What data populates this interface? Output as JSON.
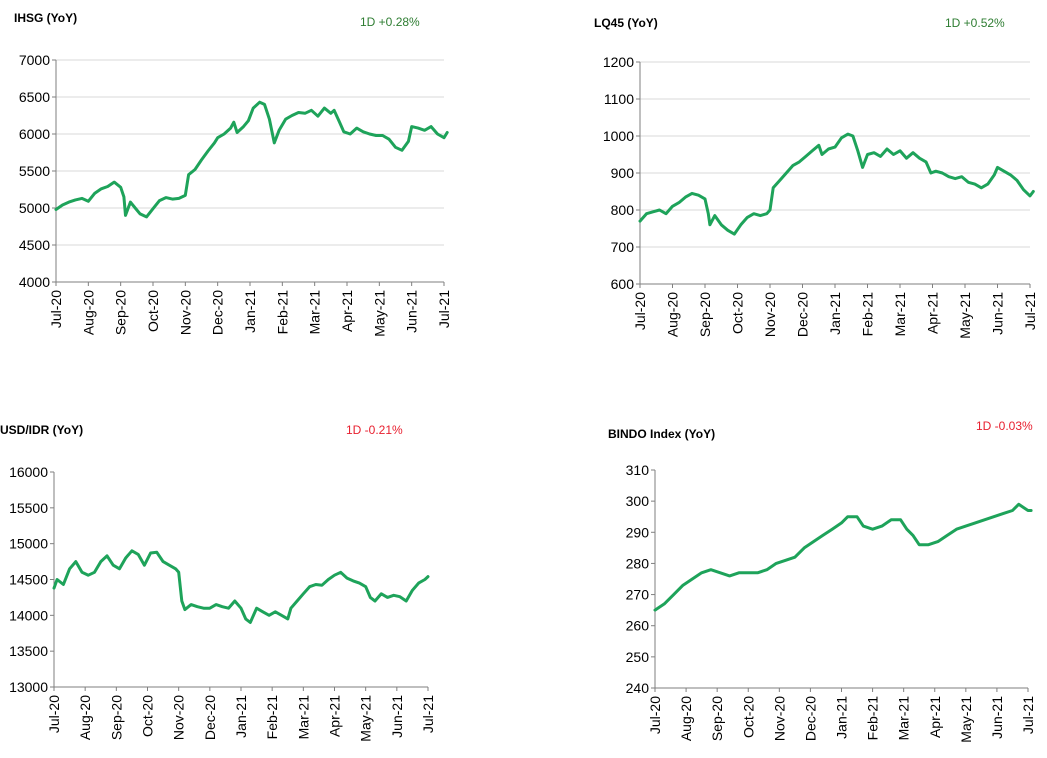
{
  "colors": {
    "line": "#1ea35a",
    "grid": "#d9d9d9",
    "axis": "#7f7f7f",
    "text": "#000000",
    "up": "#2e7d32",
    "down": "#e8202f"
  },
  "chart_data": [
    {
      "type": "line",
      "title": "IHSG (YoY)",
      "change": "1D +0.28%",
      "change_dir": "up",
      "xlabel": "",
      "ylabel": "",
      "categories": [
        "Jul-20",
        "Aug-20",
        "Sep-20",
        "Oct-20",
        "Nov-20",
        "Dec-20",
        "Jan-21",
        "Feb-21",
        "Mar-21",
        "Apr-21",
        "May-21",
        "Jun-21",
        "Jul-21"
      ],
      "yticks": [
        4000,
        4500,
        5000,
        5500,
        6000,
        6500,
        7000
      ],
      "ylim": [
        4000,
        7000
      ],
      "grid": true,
      "legend": "none",
      "series": [
        {
          "values": [
            [
              0,
              4980
            ],
            [
              0.2,
              5040
            ],
            [
              0.4,
              5080
            ],
            [
              0.6,
              5110
            ],
            [
              0.8,
              5130
            ],
            [
              1.0,
              5090
            ],
            [
              1.2,
              5200
            ],
            [
              1.4,
              5260
            ],
            [
              1.6,
              5290
            ],
            [
              1.8,
              5350
            ],
            [
              2.0,
              5280
            ],
            [
              2.1,
              5150
            ],
            [
              2.15,
              4900
            ],
            [
              2.3,
              5080
            ],
            [
              2.45,
              5000
            ],
            [
              2.6,
              4920
            ],
            [
              2.8,
              4880
            ],
            [
              3.0,
              4990
            ],
            [
              3.2,
              5100
            ],
            [
              3.4,
              5140
            ],
            [
              3.6,
              5120
            ],
            [
              3.8,
              5130
            ],
            [
              4.0,
              5170
            ],
            [
              4.1,
              5450
            ],
            [
              4.3,
              5520
            ],
            [
              4.5,
              5650
            ],
            [
              4.7,
              5770
            ],
            [
              4.9,
              5880
            ],
            [
              5.0,
              5950
            ],
            [
              5.2,
              6000
            ],
            [
              5.4,
              6080
            ],
            [
              5.5,
              6160
            ],
            [
              5.6,
              6020
            ],
            [
              5.8,
              6100
            ],
            [
              5.95,
              6180
            ],
            [
              6.1,
              6350
            ],
            [
              6.3,
              6430
            ],
            [
              6.45,
              6400
            ],
            [
              6.6,
              6200
            ],
            [
              6.75,
              5880
            ],
            [
              6.9,
              6050
            ],
            [
              7.1,
              6200
            ],
            [
              7.3,
              6250
            ],
            [
              7.5,
              6290
            ],
            [
              7.7,
              6280
            ],
            [
              7.9,
              6320
            ],
            [
              8.1,
              6240
            ],
            [
              8.3,
              6350
            ],
            [
              8.5,
              6280
            ],
            [
              8.6,
              6320
            ],
            [
              8.75,
              6180
            ],
            [
              8.9,
              6030
            ],
            [
              9.1,
              6000
            ],
            [
              9.3,
              6080
            ],
            [
              9.5,
              6030
            ],
            [
              9.7,
              6000
            ],
            [
              9.9,
              5980
            ],
            [
              10.1,
              5980
            ],
            [
              10.3,
              5930
            ],
            [
              10.5,
              5820
            ],
            [
              10.7,
              5780
            ],
            [
              10.9,
              5900
            ],
            [
              11.0,
              6100
            ],
            [
              11.2,
              6080
            ],
            [
              11.4,
              6050
            ],
            [
              11.6,
              6100
            ],
            [
              11.8,
              6000
            ],
            [
              12.0,
              5950
            ],
            [
              12.1,
              6020
            ]
          ]
        }
      ]
    },
    {
      "type": "line",
      "title": "LQ45 (YoY)",
      "change": "1D +0.52%",
      "change_dir": "up",
      "xlabel": "",
      "ylabel": "",
      "categories": [
        "Jul-20",
        "Aug-20",
        "Sep-20",
        "Oct-20",
        "Nov-20",
        "Dec-20",
        "Jan-21",
        "Feb-21",
        "Mar-21",
        "Apr-21",
        "May-21",
        "Jun-21",
        "Jul-21"
      ],
      "yticks": [
        600,
        700,
        800,
        900,
        1000,
        1100,
        1200
      ],
      "ylim": [
        600,
        1200
      ],
      "grid": true,
      "legend": "none",
      "series": [
        {
          "values": [
            [
              0,
              770
            ],
            [
              0.2,
              790
            ],
            [
              0.4,
              795
            ],
            [
              0.6,
              800
            ],
            [
              0.8,
              790
            ],
            [
              1.0,
              810
            ],
            [
              1.2,
              820
            ],
            [
              1.4,
              835
            ],
            [
              1.6,
              845
            ],
            [
              1.8,
              840
            ],
            [
              2.0,
              830
            ],
            [
              2.1,
              790
            ],
            [
              2.15,
              760
            ],
            [
              2.3,
              785
            ],
            [
              2.5,
              760
            ],
            [
              2.7,
              745
            ],
            [
              2.9,
              735
            ],
            [
              3.1,
              760
            ],
            [
              3.3,
              780
            ],
            [
              3.5,
              790
            ],
            [
              3.7,
              785
            ],
            [
              3.9,
              790
            ],
            [
              4.0,
              800
            ],
            [
              4.1,
              860
            ],
            [
              4.3,
              880
            ],
            [
              4.5,
              900
            ],
            [
              4.7,
              920
            ],
            [
              4.9,
              930
            ],
            [
              5.1,
              945
            ],
            [
              5.3,
              960
            ],
            [
              5.5,
              975
            ],
            [
              5.6,
              950
            ],
            [
              5.8,
              965
            ],
            [
              6.0,
              970
            ],
            [
              6.2,
              995
            ],
            [
              6.4,
              1005
            ],
            [
              6.55,
              1000
            ],
            [
              6.7,
              960
            ],
            [
              6.85,
              915
            ],
            [
              7.0,
              950
            ],
            [
              7.2,
              955
            ],
            [
              7.4,
              945
            ],
            [
              7.6,
              965
            ],
            [
              7.8,
              950
            ],
            [
              8.0,
              960
            ],
            [
              8.2,
              940
            ],
            [
              8.4,
              955
            ],
            [
              8.6,
              940
            ],
            [
              8.8,
              930
            ],
            [
              8.95,
              900
            ],
            [
              9.1,
              905
            ],
            [
              9.3,
              900
            ],
            [
              9.5,
              890
            ],
            [
              9.7,
              885
            ],
            [
              9.9,
              890
            ],
            [
              10.1,
              875
            ],
            [
              10.3,
              870
            ],
            [
              10.5,
              860
            ],
            [
              10.7,
              870
            ],
            [
              10.9,
              895
            ],
            [
              11.0,
              915
            ],
            [
              11.2,
              905
            ],
            [
              11.4,
              895
            ],
            [
              11.6,
              880
            ],
            [
              11.8,
              855
            ],
            [
              12.0,
              838
            ],
            [
              12.1,
              850
            ]
          ]
        }
      ]
    },
    {
      "type": "line",
      "title": "USD/IDR  (YoY)",
      "change": "1D -0.21%",
      "change_dir": "down",
      "xlabel": "",
      "ylabel": "",
      "categories": [
        "Jul-20",
        "Aug-20",
        "Sep-20",
        "Oct-20",
        "Nov-20",
        "Dec-20",
        "Jan-21",
        "Feb-21",
        "Mar-21",
        "Apr-21",
        "May-21",
        "Jun-21",
        "Jul-21"
      ],
      "yticks": [
        13000,
        13500,
        14000,
        14500,
        15000,
        15500,
        16000
      ],
      "ylim": [
        13000,
        16000
      ],
      "grid": false,
      "legend": "none",
      "series": [
        {
          "values": [
            [
              0,
              14380
            ],
            [
              0.1,
              14500
            ],
            [
              0.3,
              14430
            ],
            [
              0.5,
              14650
            ],
            [
              0.7,
              14750
            ],
            [
              0.9,
              14600
            ],
            [
              1.1,
              14560
            ],
            [
              1.3,
              14600
            ],
            [
              1.5,
              14750
            ],
            [
              1.7,
              14830
            ],
            [
              1.9,
              14700
            ],
            [
              2.1,
              14650
            ],
            [
              2.3,
              14800
            ],
            [
              2.5,
              14900
            ],
            [
              2.7,
              14850
            ],
            [
              2.9,
              14700
            ],
            [
              3.1,
              14870
            ],
            [
              3.3,
              14880
            ],
            [
              3.5,
              14750
            ],
            [
              3.7,
              14700
            ],
            [
              3.9,
              14650
            ],
            [
              4.0,
              14600
            ],
            [
              4.1,
              14200
            ],
            [
              4.2,
              14080
            ],
            [
              4.4,
              14150
            ],
            [
              4.6,
              14120
            ],
            [
              4.8,
              14100
            ],
            [
              5.0,
              14100
            ],
            [
              5.2,
              14150
            ],
            [
              5.4,
              14120
            ],
            [
              5.6,
              14100
            ],
            [
              5.8,
              14200
            ],
            [
              6.0,
              14100
            ],
            [
              6.15,
              13950
            ],
            [
              6.3,
              13900
            ],
            [
              6.5,
              14100
            ],
            [
              6.7,
              14050
            ],
            [
              6.9,
              14000
            ],
            [
              7.1,
              14050
            ],
            [
              7.3,
              14000
            ],
            [
              7.5,
              13950
            ],
            [
              7.6,
              14100
            ],
            [
              7.8,
              14200
            ],
            [
              8.0,
              14300
            ],
            [
              8.2,
              14400
            ],
            [
              8.4,
              14430
            ],
            [
              8.6,
              14420
            ],
            [
              8.8,
              14500
            ],
            [
              9.0,
              14560
            ],
            [
              9.2,
              14600
            ],
            [
              9.4,
              14520
            ],
            [
              9.6,
              14480
            ],
            [
              9.8,
              14450
            ],
            [
              10.0,
              14400
            ],
            [
              10.15,
              14250
            ],
            [
              10.3,
              14200
            ],
            [
              10.5,
              14300
            ],
            [
              10.7,
              14250
            ],
            [
              10.9,
              14280
            ],
            [
              11.1,
              14260
            ],
            [
              11.3,
              14200
            ],
            [
              11.5,
              14350
            ],
            [
              11.7,
              14450
            ],
            [
              11.9,
              14500
            ],
            [
              12.0,
              14540
            ]
          ]
        }
      ]
    },
    {
      "type": "line",
      "title": "BINDO Index (YoY)",
      "change": "1D -0.03%",
      "change_dir": "down",
      "xlabel": "",
      "ylabel": "",
      "categories": [
        "Jul-20",
        "Aug-20",
        "Sep-20",
        "Oct-20",
        "Nov-20",
        "Dec-20",
        "Jan-21",
        "Feb-21",
        "Mar-21",
        "Apr-21",
        "May-21",
        "Jun-21",
        "Jul-21"
      ],
      "yticks": [
        240,
        250,
        260,
        270,
        280,
        290,
        300,
        310
      ],
      "ylim": [
        240,
        310
      ],
      "grid": false,
      "legend": "none",
      "series": [
        {
          "values": [
            [
              0,
              265
            ],
            [
              0.3,
              267
            ],
            [
              0.6,
              270
            ],
            [
              0.9,
              273
            ],
            [
              1.2,
              275
            ],
            [
              1.5,
              277
            ],
            [
              1.8,
              278
            ],
            [
              2.1,
              277
            ],
            [
              2.4,
              276
            ],
            [
              2.7,
              277
            ],
            [
              3.0,
              277
            ],
            [
              3.3,
              277
            ],
            [
              3.6,
              278
            ],
            [
              3.9,
              280
            ],
            [
              4.2,
              281
            ],
            [
              4.5,
              282
            ],
            [
              4.8,
              285
            ],
            [
              5.1,
              287
            ],
            [
              5.4,
              289
            ],
            [
              5.7,
              291
            ],
            [
              6.0,
              293
            ],
            [
              6.2,
              295
            ],
            [
              6.5,
              295
            ],
            [
              6.7,
              292
            ],
            [
              7.0,
              291
            ],
            [
              7.3,
              292
            ],
            [
              7.6,
              294
            ],
            [
              7.9,
              294
            ],
            [
              8.1,
              291
            ],
            [
              8.3,
              289
            ],
            [
              8.5,
              286
            ],
            [
              8.8,
              286
            ],
            [
              9.1,
              287
            ],
            [
              9.4,
              289
            ],
            [
              9.7,
              291
            ],
            [
              10.0,
              292
            ],
            [
              10.3,
              293
            ],
            [
              10.6,
              294
            ],
            [
              10.9,
              295
            ],
            [
              11.2,
              296
            ],
            [
              11.5,
              297
            ],
            [
              11.7,
              299
            ],
            [
              11.85,
              298
            ],
            [
              12.0,
              297
            ],
            [
              12.1,
              297
            ]
          ]
        }
      ]
    }
  ]
}
